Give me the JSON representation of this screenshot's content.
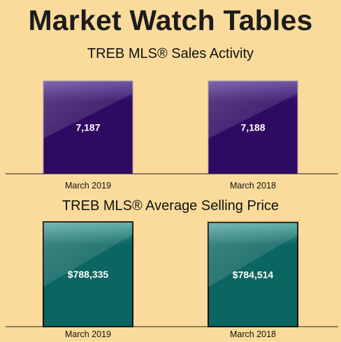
{
  "page": {
    "title": "Market Watch Tables"
  },
  "chart_data": [
    {
      "type": "bar",
      "title": "TREB MLS® Sales Activity",
      "categories": [
        "March 2019",
        "March 2018"
      ],
      "values": [
        7187,
        7188
      ],
      "value_labels": [
        "7,187",
        "7,188"
      ],
      "ylim": [
        0,
        7188
      ],
      "colors": {
        "top": "#5a3a9a",
        "bottom": "#2f0a62",
        "edge": "#a08fb0"
      },
      "grid": false
    },
    {
      "type": "bar",
      "title": "TREB MLS® Average Selling Price",
      "categories": [
        "March 2019",
        "March 2018"
      ],
      "values": [
        788335,
        784514
      ],
      "value_labels": [
        "$788,335",
        "$784,514"
      ],
      "ylim": [
        0,
        788335
      ],
      "colors": {
        "top": "#4fa6a0",
        "bottom": "#0b6560",
        "edge": "#111111"
      },
      "grid": false
    }
  ]
}
